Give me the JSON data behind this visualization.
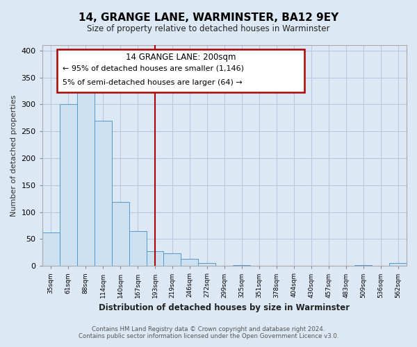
{
  "title": "14, GRANGE LANE, WARMINSTER, BA12 9EY",
  "subtitle": "Size of property relative to detached houses in Warminster",
  "xlabel": "Distribution of detached houses by size in Warminster",
  "ylabel": "Number of detached properties",
  "bar_values": [
    62,
    300,
    330,
    270,
    119,
    65,
    28,
    24,
    13,
    5,
    0,
    2,
    0,
    0,
    0,
    0,
    0,
    0,
    2,
    0,
    5
  ],
  "bin_labels": [
    "35sqm",
    "61sqm",
    "88sqm",
    "114sqm",
    "140sqm",
    "167sqm",
    "193sqm",
    "219sqm",
    "246sqm",
    "272sqm",
    "299sqm",
    "325sqm",
    "351sqm",
    "378sqm",
    "404sqm",
    "430sqm",
    "457sqm",
    "483sqm",
    "509sqm",
    "536sqm",
    "562sqm"
  ],
  "bar_color": "#cce0f0",
  "bar_edge_color": "#5599cc",
  "highlight_line_color": "#aa0000",
  "highlight_bin_index": 6.5,
  "annotation_title": "14 GRANGE LANE: 200sqm",
  "annotation_line1": "← 95% of detached houses are smaller (1,146)",
  "annotation_line2": "5% of semi-detached houses are larger (64) →",
  "ylim": [
    0,
    410
  ],
  "yticks": [
    0,
    50,
    100,
    150,
    200,
    250,
    300,
    350,
    400
  ],
  "footer_line1": "Contains HM Land Registry data © Crown copyright and database right 2024.",
  "footer_line2": "Contains public sector information licensed under the Open Government Licence v3.0.",
  "bg_color": "#dde8f5",
  "plot_bg_color": "#dde8f5",
  "grid_color": "#b8c8de"
}
